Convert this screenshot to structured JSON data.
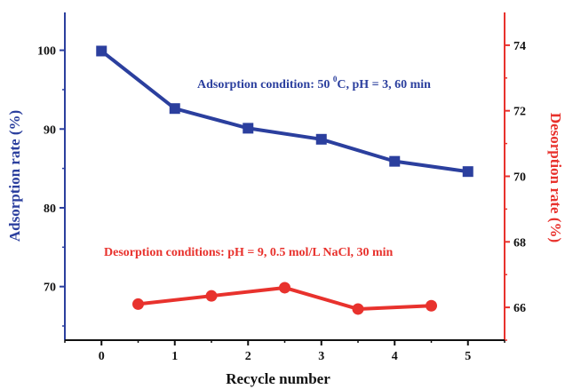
{
  "chart_data": {
    "type": "line",
    "xlabel": "Recycle number",
    "y_left_label": "Adsorption rate (%)",
    "y_right_label": "Desorption rate (%)",
    "x_ticks": [
      0,
      1,
      2,
      3,
      4,
      5
    ],
    "xlim": [
      -0.5,
      5.5
    ],
    "y_left_ticks": [
      70,
      80,
      90,
      100
    ],
    "y_left_lim": [
      63.2,
      104.8
    ],
    "y_right_ticks": [
      66,
      68,
      70,
      72,
      74
    ],
    "y_right_lim": [
      65.0,
      75.0
    ],
    "grid": false,
    "series": [
      {
        "axis": "left",
        "marker": "square",
        "color": "#2b3f9e",
        "x": [
          0,
          1,
          2,
          3,
          4,
          5
        ],
        "y": [
          99.9,
          92.6,
          90.1,
          88.7,
          85.9,
          84.6
        ]
      },
      {
        "axis": "right",
        "marker": "circle",
        "color": "#e8322d",
        "x": [
          0.5,
          1.5,
          2.5,
          3.5,
          4.5
        ],
        "y": [
          66.1,
          66.35,
          66.6,
          65.95,
          66.05
        ]
      }
    ],
    "annotations": {
      "adsorption_prefix": "Adsorption condition: 50 ",
      "adsorption_degree": "0",
      "adsorption_suffix": "C, pH = 3, 60 min",
      "desorption": "Desorption conditions: pH = 9, 0.5 mol/L NaCl, 30 min"
    }
  }
}
